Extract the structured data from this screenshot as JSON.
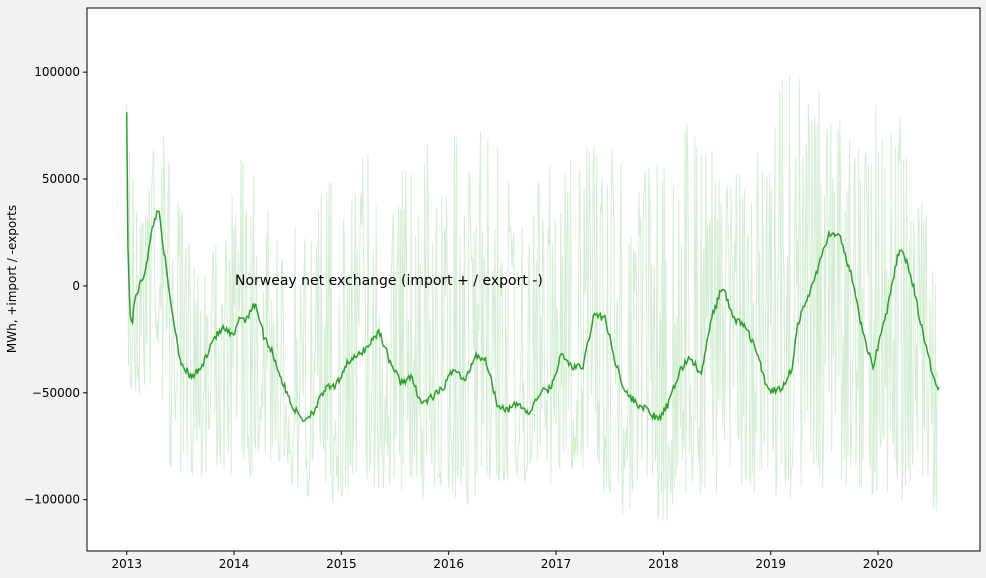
{
  "chart_data": {
    "type": "line",
    "title": "",
    "xlabel": "",
    "ylabel": "MWh, +import / -exports",
    "annotation": "Norweay net exchange (import + / export -)",
    "xlim": [
      2012.63,
      2020.95
    ],
    "ylim": [
      -124000,
      130000
    ],
    "x_ticks": [
      2013,
      2014,
      2015,
      2016,
      2017,
      2018,
      2019,
      2020
    ],
    "y_ticks": [
      100000,
      50000,
      0,
      -50000,
      -100000
    ],
    "y_tick_labels": [
      "100000",
      "50000",
      "0",
      "−50000",
      "−100000"
    ],
    "grid": false,
    "colors": {
      "smoothed": "#2ca02c",
      "raw": "#c8eac8",
      "plot_bg": "#ffffff",
      "page_bg": "#f2f2f2"
    },
    "series": [
      {
        "key": "smoothed",
        "x": [
          2013.0,
          2013.01,
          2013.03,
          2013.05,
          2013.08,
          2013.12,
          2013.16,
          2013.2,
          2013.25,
          2013.3,
          2013.35,
          2013.4,
          2013.45,
          2013.5,
          2013.6,
          2013.7,
          2013.8,
          2013.9,
          2014.0,
          2014.05,
          2014.1,
          2014.15,
          2014.2,
          2014.28,
          2014.35,
          2014.45,
          2014.55,
          2014.65,
          2014.75,
          2014.85,
          2014.95,
          2015.05,
          2015.15,
          2015.25,
          2015.35,
          2015.45,
          2015.55,
          2015.65,
          2015.75,
          2015.85,
          2015.95,
          2016.05,
          2016.15,
          2016.25,
          2016.35,
          2016.45,
          2016.55,
          2016.65,
          2016.75,
          2016.85,
          2016.95,
          2017.05,
          2017.15,
          2017.25,
          2017.35,
          2017.45,
          2017.55,
          2017.65,
          2017.75,
          2017.85,
          2017.95,
          2018.05,
          2018.15,
          2018.25,
          2018.35,
          2018.45,
          2018.55,
          2018.65,
          2018.75,
          2018.85,
          2018.95,
          2019.0,
          2019.1,
          2019.2,
          2019.25,
          2019.35,
          2019.45,
          2019.55,
          2019.65,
          2019.75,
          2019.85,
          2019.95,
          2020.0,
          2020.1,
          2020.2,
          2020.3,
          2020.4,
          2020.5,
          2020.57
        ],
        "y": [
          83000,
          20000,
          -12000,
          -18000,
          -5000,
          0,
          5000,
          15000,
          30000,
          36000,
          15000,
          -5000,
          -20000,
          -35000,
          -43000,
          -38000,
          -25000,
          -20000,
          -24000,
          -14000,
          -16000,
          -12000,
          -8000,
          -24000,
          -30000,
          -45000,
          -57000,
          -63000,
          -58000,
          -48000,
          -47000,
          -36000,
          -33000,
          -28000,
          -21000,
          -35000,
          -45000,
          -43000,
          -55000,
          -52000,
          -48000,
          -38000,
          -45000,
          -32000,
          -35000,
          -55000,
          -58000,
          -55000,
          -60000,
          -50000,
          -48000,
          -32000,
          -38000,
          -38000,
          -14000,
          -14000,
          -35000,
          -50000,
          -55000,
          -58000,
          -63000,
          -55000,
          -40000,
          -33000,
          -42000,
          -15000,
          0,
          -15000,
          -18000,
          -28000,
          -45000,
          -49000,
          -48000,
          -38000,
          -18000,
          -5000,
          10000,
          25000,
          22000,
          5000,
          -20000,
          -38000,
          -28000,
          -8000,
          18000,
          7000,
          -18000,
          -40000,
          -48000
        ]
      }
    ],
    "raw_band": {
      "note": "daily values, light green",
      "x": [
        2013.0,
        2013.1,
        2013.3,
        2013.4,
        2013.6,
        2013.9,
        2014.1,
        2014.3,
        2014.6,
        2014.9,
        2015.1,
        2015.4,
        2015.7,
        2016.0,
        2016.3,
        2016.6,
        2016.9,
        2017.2,
        2017.5,
        2017.8,
        2018.1,
        2018.3,
        2018.6,
        2018.9,
        2019.1,
        2019.3,
        2019.6,
        2019.9,
        2020.1,
        2020.3,
        2020.55
      ],
      "upper": [
        85000,
        55000,
        92000,
        60000,
        20000,
        30000,
        70000,
        40000,
        30000,
        58000,
        72000,
        70000,
        65000,
        72000,
        75000,
        70000,
        58000,
        65000,
        68000,
        60000,
        75000,
        82000,
        50000,
        65000,
        115000,
        108000,
        80000,
        72000,
        112000,
        60000,
        20000
      ],
      "lower": [
        -65000,
        -55000,
        -45000,
        -90000,
        -90000,
        -88000,
        -92000,
        -85000,
        -98000,
        -102000,
        -108000,
        -95000,
        -100000,
        -100000,
        -110000,
        -92000,
        -95000,
        -90000,
        -105000,
        -112000,
        -110000,
        -100000,
        -95000,
        -98000,
        -102000,
        -100000,
        -92000,
        -100000,
        -105000,
        -100000,
        -108000
      ]
    }
  }
}
